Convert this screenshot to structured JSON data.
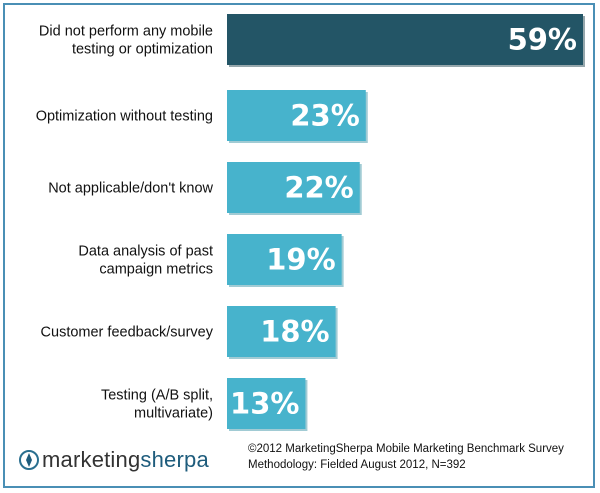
{
  "chart_data": {
    "type": "bar",
    "orientation": "horizontal",
    "categories": [
      "Did not perform any mobile testing or optimization",
      "Optimization without testing",
      "Not applicable/don't know",
      "Data analysis of past campaign metrics",
      "Customer feedback/survey",
      "Testing (A/B split, multivariate)"
    ],
    "category_lines": [
      [
        "Did not perform any mobile",
        "testing or optimization"
      ],
      [
        "Optimization without testing"
      ],
      [
        "Not applicable/don't know"
      ],
      [
        "Data analysis of past",
        "campaign metrics"
      ],
      [
        "Customer feedback/survey"
      ],
      [
        "Testing (A/B split,",
        "multivariate)"
      ]
    ],
    "values": [
      59,
      23,
      22,
      19,
      18,
      13
    ],
    "value_labels": [
      "59%",
      "23%",
      "22%",
      "19%",
      "18%",
      "13%"
    ],
    "colors": {
      "highlight": "#235566",
      "bar": "#47b3cc",
      "bar_shadow": "#2f8ba0",
      "highlight_shadow": "#163c48"
    },
    "highlight_index": 0,
    "grid": false,
    "legend": "none"
  },
  "footer": {
    "logo_part1": "marketing",
    "logo_part2": "sherpa",
    "logo_icon": "compass-icon",
    "source_line1": "©2012 MarketingSherpa Mobile Marketing Benchmark Survey",
    "source_line2": "Methodology: Fielded August 2012, N=392"
  }
}
